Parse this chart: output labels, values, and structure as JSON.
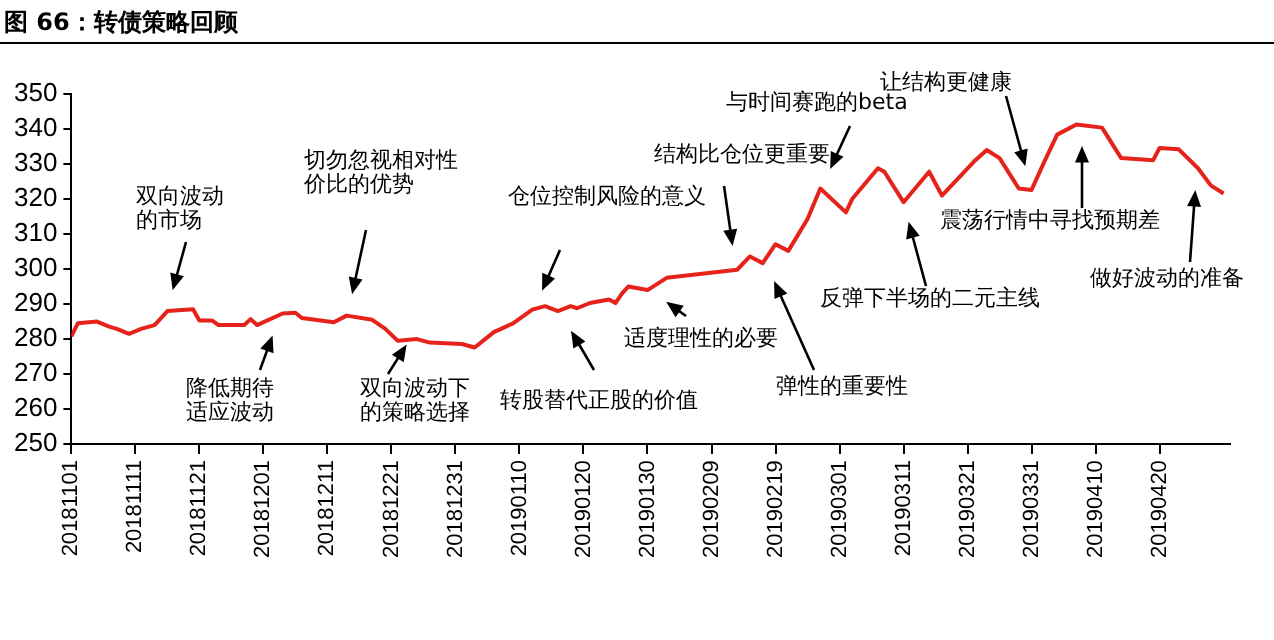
{
  "chart_data": {
    "type": "line",
    "title": "图 66：转债策略回顾",
    "x": [
      "2018-11-01",
      "2018-11-02",
      "2018-11-05",
      "2018-11-07",
      "2018-11-08",
      "2018-11-10",
      "2018-11-12",
      "2018-11-14",
      "2018-11-16",
      "2018-11-20",
      "2018-11-21",
      "2018-11-23",
      "2018-11-24",
      "2018-11-28",
      "2018-11-29",
      "2018-11-30",
      "2018-12-04",
      "2018-12-06",
      "2018-12-07",
      "2018-12-12",
      "2018-12-14",
      "2018-12-18",
      "2018-12-20",
      "2018-12-22",
      "2018-12-25",
      "2018-12-27",
      "2019-01-01",
      "2019-01-03",
      "2019-01-06",
      "2019-01-09",
      "2019-01-12",
      "2019-01-14",
      "2019-01-16",
      "2019-01-18",
      "2019-01-19",
      "2019-01-21",
      "2019-01-24",
      "2019-01-25",
      "2019-01-26",
      "2019-01-27",
      "2019-01-30",
      "2019-02-02",
      "2019-02-13",
      "2019-02-15",
      "2019-02-17",
      "2019-02-19",
      "2019-02-21",
      "2019-02-24",
      "2019-02-26",
      "2019-03-02",
      "2019-03-03",
      "2019-03-07",
      "2019-03-08",
      "2019-03-11",
      "2019-03-15",
      "2019-03-17",
      "2019-03-22",
      "2019-03-24",
      "2019-03-26",
      "2019-03-29",
      "2019-03-31",
      "2019-04-02",
      "2019-04-04",
      "2019-04-07",
      "2019-04-11",
      "2019-04-14",
      "2019-04-19",
      "2019-04-20",
      "2019-04-23",
      "2019-04-26",
      "2019-04-28",
      "2019-04-30"
    ],
    "values": [
      280.8,
      284.5,
      285,
      283.5,
      283,
      281.5,
      283,
      284,
      288,
      288.5,
      285.3,
      285.3,
      284,
      284,
      285.7,
      284,
      287.3,
      287.5,
      286,
      284.8,
      286.7,
      285.5,
      283,
      279.5,
      280,
      279,
      278.6,
      277.6,
      282,
      284.5,
      288.4,
      289.4,
      288,
      289.4,
      288.8,
      290.3,
      291.3,
      290.3,
      293,
      295,
      294,
      297.5,
      299.8,
      303.6,
      301.7,
      307.1,
      305.2,
      314.3,
      323,
      316.2,
      320.1,
      328.8,
      327.8,
      319.1,
      327.8,
      321,
      330.7,
      334,
      331.7,
      323,
      322.6,
      330.7,
      338.4,
      341.3,
      340.4,
      331.7,
      331.1,
      334.6,
      334.2,
      328.8,
      323.9,
      321.6
    ],
    "color": "#e5231b",
    "xlim": [
      "2018-11-01",
      "2019-05-01"
    ],
    "xticks": [
      {
        "value": "2018-11-01",
        "label": "20181101"
      },
      {
        "value": "2018-11-11",
        "label": "20181111"
      },
      {
        "value": "2018-11-21",
        "label": "20181121"
      },
      {
        "value": "2018-12-01",
        "label": "20181201"
      },
      {
        "value": "2018-12-11",
        "label": "20181211"
      },
      {
        "value": "2018-12-21",
        "label": "20181221"
      },
      {
        "value": "2018-12-31",
        "label": "20181231"
      },
      {
        "value": "2019-01-10",
        "label": "20190110"
      },
      {
        "value": "2019-01-20",
        "label": "20190120"
      },
      {
        "value": "2019-01-30",
        "label": "20190130"
      },
      {
        "value": "2019-02-09",
        "label": "20190209"
      },
      {
        "value": "2019-02-19",
        "label": "20190219"
      },
      {
        "value": "2019-03-01",
        "label": "20190301"
      },
      {
        "value": "2019-03-11",
        "label": "20190311"
      },
      {
        "value": "2019-03-21",
        "label": "20190321"
      },
      {
        "value": "2019-03-31",
        "label": "20190331"
      },
      {
        "value": "2019-04-10",
        "label": "20190410"
      },
      {
        "value": "2019-04-20",
        "label": "20190420"
      }
    ],
    "ylim": [
      250,
      350
    ],
    "yticks": [
      250,
      260,
      270,
      280,
      290,
      300,
      310,
      320,
      330,
      340,
      350
    ],
    "annotations": [
      "双向波动的市场",
      "降低期待适应波动",
      "切勿忽视相对性价比的优势",
      "双向波动下的策略选择",
      "仓位控制风险的意义",
      "转股替代正股的价值",
      "适度理性的必要",
      "结构比仓位更重要",
      "与时间赛跑的beta",
      "弹性的重要性",
      "让结构更健康",
      "反弹下半场的二元主线",
      "震荡行情中寻找预期差",
      "做好波动的准备"
    ]
  }
}
